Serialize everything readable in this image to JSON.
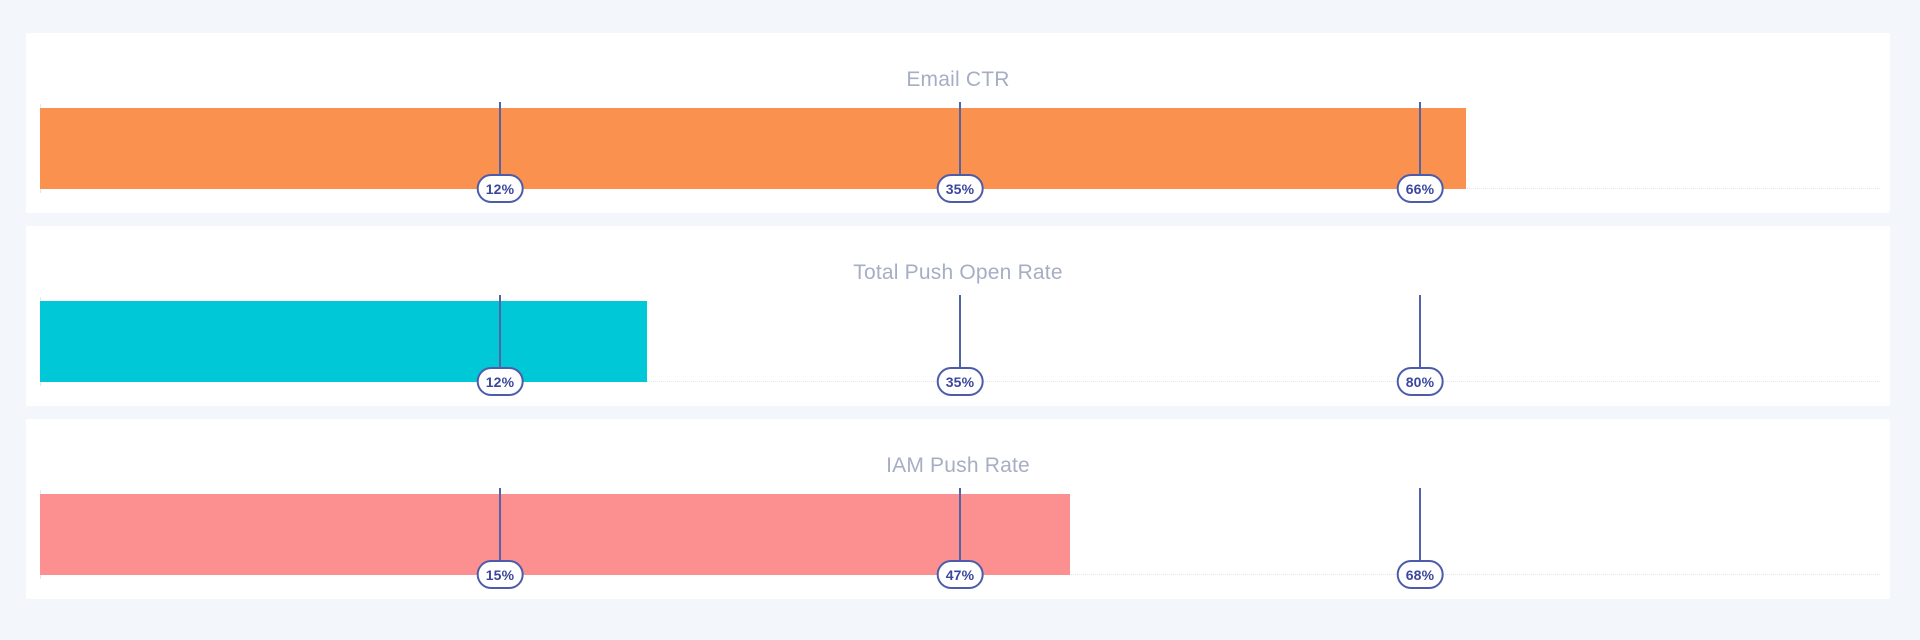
{
  "theme": {
    "page_background": "#f3f6fa",
    "card_background": "#ffffff",
    "title_color": "#a7aec4",
    "marker_line_color": "#5263a8",
    "badge_border_color": "#4d5caa",
    "badge_text_color": "#3b479d",
    "badge_background": "#ffffff",
    "axis_line_color": "#e3e6f0"
  },
  "chart_data": [
    {
      "type": "bar",
      "title": "Email CTR",
      "bar_color": "#fa914e",
      "bar_extent_pct": 77.5,
      "markers": [
        {
          "label": "12%",
          "value": 12,
          "position_pct": 25
        },
        {
          "label": "35%",
          "value": 35,
          "position_pct": 50
        },
        {
          "label": "66%",
          "value": 66,
          "position_pct": 75
        }
      ]
    },
    {
      "type": "bar",
      "title": "Total Push Open Rate",
      "bar_color": "#00c8d6",
      "bar_extent_pct": 33,
      "markers": [
        {
          "label": "12%",
          "value": 12,
          "position_pct": 25
        },
        {
          "label": "35%",
          "value": 35,
          "position_pct": 50
        },
        {
          "label": "80%",
          "value": 80,
          "position_pct": 75
        }
      ]
    },
    {
      "type": "bar",
      "title": "IAM Push Rate",
      "bar_color": "#fc8f8f",
      "bar_extent_pct": 56,
      "markers": [
        {
          "label": "15%",
          "value": 15,
          "position_pct": 25
        },
        {
          "label": "47%",
          "value": 47,
          "position_pct": 50
        },
        {
          "label": "68%",
          "value": 68,
          "position_pct": 75
        }
      ]
    }
  ]
}
